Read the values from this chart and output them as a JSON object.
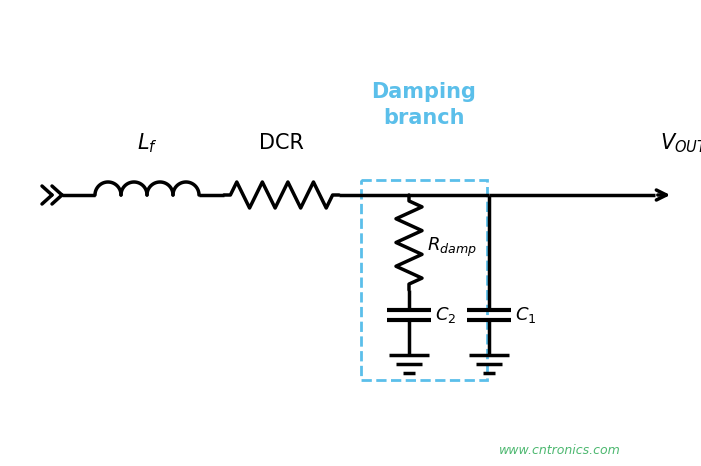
{
  "bg_color": "#ffffff",
  "line_color": "#000000",
  "damp_box_color": "#5bbfea",
  "label_color": "#5bbfea",
  "watermark_color": "#4db870",
  "damping_label": "Damping\nbranch",
  "watermark": "www.cntronics.com"
}
